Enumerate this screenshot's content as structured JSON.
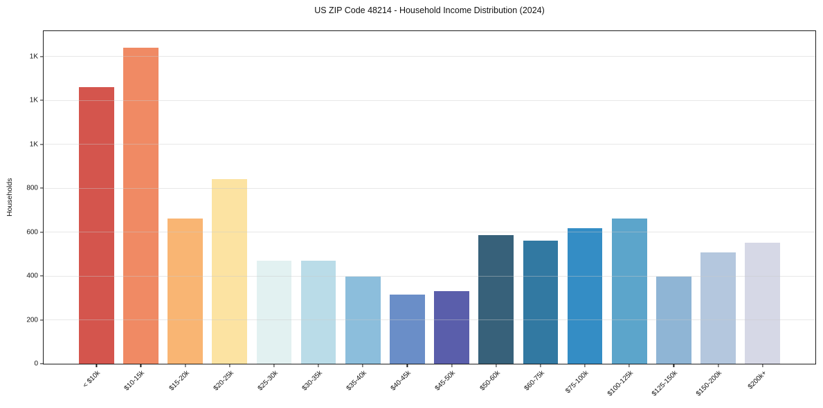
{
  "chart_data": {
    "type": "bar",
    "title": "US ZIP Code 48214 - Household Income Distribution (2024)",
    "xlabel": "",
    "ylabel": "Households",
    "categories": [
      "< $10k",
      "$10-15k",
      "$15-20k",
      "$20-25k",
      "$25-30k",
      "$30-35k",
      "$35-40k",
      "$40-45k",
      "$45-50k",
      "$50-60k",
      "$60-75k",
      "$75-100k",
      "$100-125k",
      "$125-150k",
      "$150-200k",
      "$200k+"
    ],
    "values": [
      1260,
      1440,
      660,
      840,
      470,
      468,
      398,
      315,
      330,
      585,
      560,
      617,
      660,
      396,
      508,
      550
    ],
    "bar_colors": [
      "#d4554d",
      "#f08a64",
      "#f9b573",
      "#fce3a2",
      "#e2f1f1",
      "#badce8",
      "#8cbedc",
      "#6a8ec8",
      "#5a5eab",
      "#37617a",
      "#3279a2",
      "#348dc5",
      "#5ca5cb",
      "#8fb5d5",
      "#b4c7de",
      "#d6d8e6"
    ],
    "ylim": [
      0,
      1515
    ],
    "yticks": [
      {
        "value": 0,
        "label": "0"
      },
      {
        "value": 200,
        "label": "200"
      },
      {
        "value": 400,
        "label": "400"
      },
      {
        "value": 600,
        "label": "600"
      },
      {
        "value": 800,
        "label": "800"
      },
      {
        "value": 1000,
        "label": "1K"
      },
      {
        "value": 1200,
        "label": "1K"
      },
      {
        "value": 1400,
        "label": "1K"
      }
    ],
    "grid": "horizontal",
    "legend": "none",
    "x_tick_rotation_deg": 45,
    "background_color": "#ffffff",
    "spine_color": "#1a1a1a",
    "grid_color": "#e6e6e6"
  }
}
